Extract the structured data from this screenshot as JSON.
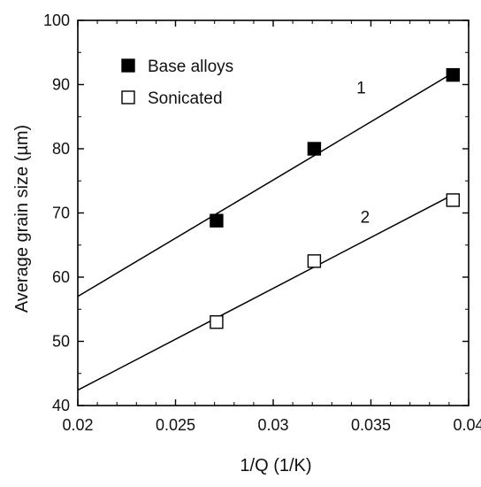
{
  "chart_data": {
    "type": "scatter",
    "title": "",
    "xlabel": "1/Q (1/K)",
    "ylabel": "Average grain size (µm)",
    "xlim": [
      0.02,
      0.04
    ],
    "ylim": [
      40,
      100
    ],
    "x_ticks": [
      0.02,
      0.025,
      0.03,
      0.035,
      0.04
    ],
    "x_tick_labels": [
      "0.02",
      "0.025",
      "0.03",
      "0.035",
      "0.04"
    ],
    "y_ticks": [
      40,
      50,
      60,
      70,
      80,
      90,
      100
    ],
    "y_tick_labels": [
      "40",
      "50",
      "60",
      "70",
      "80",
      "90",
      "100"
    ],
    "grid": false,
    "legend_position": "top-left",
    "series": [
      {
        "name": "Base alloys",
        "marker": "filled-square",
        "color": "#000000",
        "x": [
          0.0271,
          0.0321,
          0.0392
        ],
        "y": [
          68.8,
          80.0,
          91.5
        ],
        "fit_line": {
          "x": [
            0.02,
            0.0393
          ],
          "y": [
            57.0,
            92.0
          ]
        },
        "line_label": "1",
        "line_label_at": {
          "x": 0.0345,
          "y": 88.6
        }
      },
      {
        "name": "Sonicated",
        "marker": "open-square",
        "color": "#000000",
        "x": [
          0.0271,
          0.0321,
          0.0392
        ],
        "y": [
          53.0,
          62.5,
          72.0
        ],
        "fit_line": {
          "x": [
            0.02,
            0.0393
          ],
          "y": [
            42.4,
            73.0
          ]
        },
        "line_label": "2",
        "line_label_at": {
          "x": 0.0347,
          "y": 68.5
        }
      }
    ]
  }
}
